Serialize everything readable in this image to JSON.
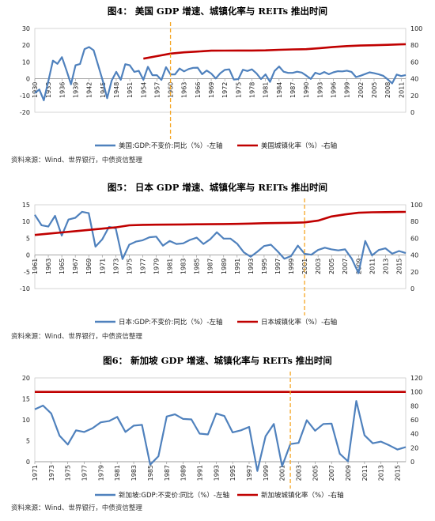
{
  "colors": {
    "gdp_line": "#4F81BD",
    "urban_line": "#C00000",
    "reits_marker": "#F5A623",
    "axis": "#888888"
  },
  "chart_data": [
    {
      "type": "line",
      "title": "图4：  美国 GDP 增速、城镇化率与 REITs 推出时间",
      "source": "资料来源：Wind、世界银行，中债资信整理",
      "x_ticks": [
        "1930",
        "1933",
        "1936",
        "1939",
        "1942",
        "1945",
        "1948",
        "1951",
        "1954",
        "1957",
        "1960",
        "1963",
        "1966",
        "1969",
        "1972",
        "1975",
        "1978",
        "1981",
        "1984",
        "1987",
        "1990",
        "1993",
        "1996",
        "1999",
        "2002",
        "2005",
        "2008",
        "2011"
      ],
      "x_range": [
        1930,
        2012
      ],
      "ylim_left": [
        -20,
        30
      ],
      "yticks_left": [
        -20,
        -10,
        0,
        10,
        20,
        30
      ],
      "ylim_right": [
        0,
        100
      ],
      "yticks_right": [
        0,
        20,
        40,
        60,
        80,
        100
      ],
      "reits_year": 1960,
      "series": [
        {
          "name": "美国:GDP:不变价:同比（%）-左轴",
          "axis": "left",
          "x": [
            1930,
            1931,
            1932,
            1933,
            1934,
            1935,
            1936,
            1937,
            1938,
            1939,
            1940,
            1941,
            1942,
            1943,
            1944,
            1945,
            1946,
            1947,
            1948,
            1949,
            1950,
            1951,
            1952,
            1953,
            1954,
            1955,
            1956,
            1957,
            1958,
            1959,
            1960,
            1961,
            1962,
            1963,
            1964,
            1965,
            1966,
            1967,
            1968,
            1969,
            1970,
            1971,
            1972,
            1973,
            1974,
            1975,
            1976,
            1977,
            1978,
            1979,
            1980,
            1981,
            1982,
            1983,
            1984,
            1985,
            1986,
            1987,
            1988,
            1989,
            1990,
            1991,
            1992,
            1993,
            1994,
            1995,
            1996,
            1997,
            1998,
            1999,
            2000,
            2001,
            2002,
            2003,
            2004,
            2005,
            2006,
            2007,
            2008,
            2009,
            2010,
            2011,
            2012
          ],
          "values": [
            -8.5,
            -6.4,
            -12.9,
            -1.2,
            10.8,
            8.9,
            12.9,
            5.1,
            -3.3,
            8.0,
            8.8,
            17.7,
            18.9,
            17.0,
            8.0,
            -1.0,
            -11.6,
            -1.1,
            4.1,
            -0.6,
            8.7,
            8.0,
            4.1,
            4.7,
            -0.6,
            7.1,
            2.1,
            2.1,
            -0.7,
            6.9,
            2.6,
            2.6,
            6.1,
            4.4,
            5.8,
            6.5,
            6.6,
            2.7,
            4.9,
            3.1,
            0.2,
            3.3,
            5.3,
            5.6,
            -0.5,
            -0.2,
            5.4,
            4.6,
            5.6,
            3.2,
            -0.2,
            2.6,
            -1.9,
            4.6,
            7.3,
            4.2,
            3.5,
            3.5,
            4.2,
            3.7,
            1.9,
            -0.1,
            3.6,
            2.7,
            4.0,
            2.7,
            3.8,
            4.5,
            4.4,
            4.8,
            4.1,
            1.0,
            1.8,
            2.8,
            3.8,
            3.3,
            2.7,
            1.8,
            -0.3,
            -2.8,
            2.5,
            1.6,
            2.2
          ]
        },
        {
          "name": "美国城镇化率（%）-右轴",
          "axis": "right",
          "x": [
            1954,
            1957,
            1960,
            1963,
            1966,
            1969,
            1972,
            1975,
            1978,
            1981,
            1984,
            1987,
            1990,
            1993,
            1996,
            1999,
            2002,
            2005,
            2008,
            2011,
            2012
          ],
          "values": [
            64,
            67,
            70,
            71.5,
            72.5,
            73.5,
            73.6,
            73.7,
            73.7,
            73.9,
            74.5,
            75.0,
            75.3,
            76.5,
            77.9,
            79.0,
            79.6,
            80.0,
            80.5,
            81.0,
            81.2
          ]
        }
      ]
    },
    {
      "type": "line",
      "title": "图5：  日本 GDP 增速、城镇化率与 REITs 推出时间",
      "source": "资料来源：Wind、世界银行，中债资信整理",
      "x_ticks": [
        "1961",
        "1963",
        "1965",
        "1967",
        "1969",
        "1971",
        "1973",
        "1975",
        "1977",
        "1979",
        "1981",
        "1983",
        "1985",
        "1987",
        "1989",
        "1991",
        "1993",
        "1995",
        "1997",
        "1999",
        "2001",
        "2003",
        "2005",
        "2007",
        "2009",
        "2011",
        "2013",
        "2015"
      ],
      "x_range": [
        1961,
        2016
      ],
      "ylim_left": [
        -10,
        15
      ],
      "yticks_left": [
        -10,
        -5,
        0,
        5,
        10,
        15
      ],
      "ylim_right": [
        0,
        100
      ],
      "yticks_right": [
        0,
        20,
        40,
        60,
        80,
        100
      ],
      "reits_year": 2001,
      "series": [
        {
          "name": "日本:GDP:不变价:同比（%）-左轴",
          "axis": "left",
          "x": [
            1961,
            1962,
            1963,
            1964,
            1965,
            1966,
            1967,
            1968,
            1969,
            1970,
            1971,
            1972,
            1973,
            1974,
            1975,
            1976,
            1977,
            1978,
            1979,
            1980,
            1981,
            1982,
            1983,
            1984,
            1985,
            1986,
            1987,
            1988,
            1989,
            1990,
            1991,
            1992,
            1993,
            1994,
            1995,
            1996,
            1997,
            1998,
            1999,
            2000,
            2001,
            2002,
            2003,
            2004,
            2005,
            2006,
            2007,
            2008,
            2009,
            2010,
            2011,
            2012,
            2013,
            2014,
            2015,
            2016
          ],
          "values": [
            12.0,
            8.9,
            8.5,
            11.7,
            5.8,
            10.6,
            11.1,
            12.9,
            12.5,
            2.5,
            4.7,
            8.4,
            8.0,
            -1.2,
            3.1,
            4.0,
            4.4,
            5.3,
            5.5,
            2.8,
            4.2,
            3.3,
            3.5,
            4.5,
            5.2,
            3.3,
            4.7,
            6.8,
            4.9,
            4.9,
            3.4,
            0.8,
            -0.5,
            1.0,
            2.7,
            3.1,
            1.1,
            -1.1,
            -0.3,
            2.8,
            0.4,
            0.1,
            1.5,
            2.2,
            1.7,
            1.4,
            1.7,
            -1.1,
            -5.4,
            4.2,
            -0.1,
            1.5,
            2.0,
            0.4,
            1.2,
            0.6
          ]
        },
        {
          "name": "日本城镇化率（%）-右轴",
          "axis": "right",
          "x": [
            1961,
            1963,
            1965,
            1967,
            1969,
            1971,
            1973,
            1975,
            1977,
            1979,
            1981,
            1983,
            1985,
            1987,
            1989,
            1991,
            1993,
            1995,
            1997,
            1999,
            2001,
            2003,
            2005,
            2007,
            2009,
            2011,
            2013,
            2015,
            2016
          ],
          "values": [
            64.0,
            65.5,
            67.0,
            68.5,
            70.0,
            71.5,
            73.0,
            75.5,
            76.0,
            76.2,
            76.3,
            76.5,
            76.7,
            76.8,
            77.0,
            77.2,
            77.5,
            78.0,
            78.2,
            78.5,
            79.0,
            81.0,
            86.0,
            88.5,
            90.5,
            91.0,
            91.2,
            91.4,
            91.5
          ]
        }
      ]
    },
    {
      "type": "line",
      "title": "图6：  新加坡 GDP 增速、城镇化率与 REITs 推出时间",
      "source": "资料来源：Wind、世界银行，中债资信整理",
      "x_ticks": [
        "1971",
        "1973",
        "1975",
        "1977",
        "1979",
        "1981",
        "1983",
        "1985",
        "1987",
        "1989",
        "1991",
        "1993",
        "1995",
        "1997",
        "1999",
        "2001",
        "2003",
        "2005",
        "2007",
        "2009",
        "2011",
        "2013",
        "2015"
      ],
      "x_range": [
        1971,
        2016
      ],
      "ylim_left": [
        0,
        20
      ],
      "yticks_left": [
        0,
        5,
        10,
        15,
        20
      ],
      "ylim_right": [
        0,
        120
      ],
      "yticks_right": [
        0,
        20,
        40,
        60,
        80,
        100,
        120
      ],
      "reits_year": 2002,
      "series": [
        {
          "name": "新加坡:GDP:不变价:同比（%）-左轴",
          "axis": "left",
          "x": [
            1971,
            1972,
            1973,
            1974,
            1975,
            1976,
            1977,
            1978,
            1979,
            1980,
            1981,
            1982,
            1983,
            1984,
            1985,
            1986,
            1987,
            1988,
            1989,
            1990,
            1991,
            1992,
            1993,
            1994,
            1995,
            1996,
            1997,
            1998,
            1999,
            2000,
            2001,
            2002,
            2003,
            2004,
            2005,
            2006,
            2007,
            2008,
            2009,
            2010,
            2011,
            2012,
            2013,
            2014,
            2015,
            2016
          ],
          "values": [
            12.5,
            13.4,
            11.5,
            6.2,
            4.1,
            7.5,
            7.1,
            8.0,
            9.4,
            9.7,
            10.7,
            7.1,
            8.6,
            8.8,
            -0.7,
            1.3,
            10.8,
            11.3,
            10.2,
            10.1,
            6.7,
            6.5,
            11.5,
            10.9,
            7.0,
            7.5,
            8.3,
            -2.2,
            6.1,
            9.0,
            -1.1,
            4.2,
            4.5,
            9.9,
            7.4,
            9.0,
            9.1,
            1.9,
            0.1,
            14.5,
            6.3,
            4.4,
            4.8,
            3.9,
            2.9,
            3.5
          ]
        },
        {
          "name": "新加坡城镇化率（%）-右轴",
          "axis": "right",
          "x": [
            1971,
            2016
          ],
          "values": [
            100,
            100
          ]
        }
      ]
    }
  ]
}
